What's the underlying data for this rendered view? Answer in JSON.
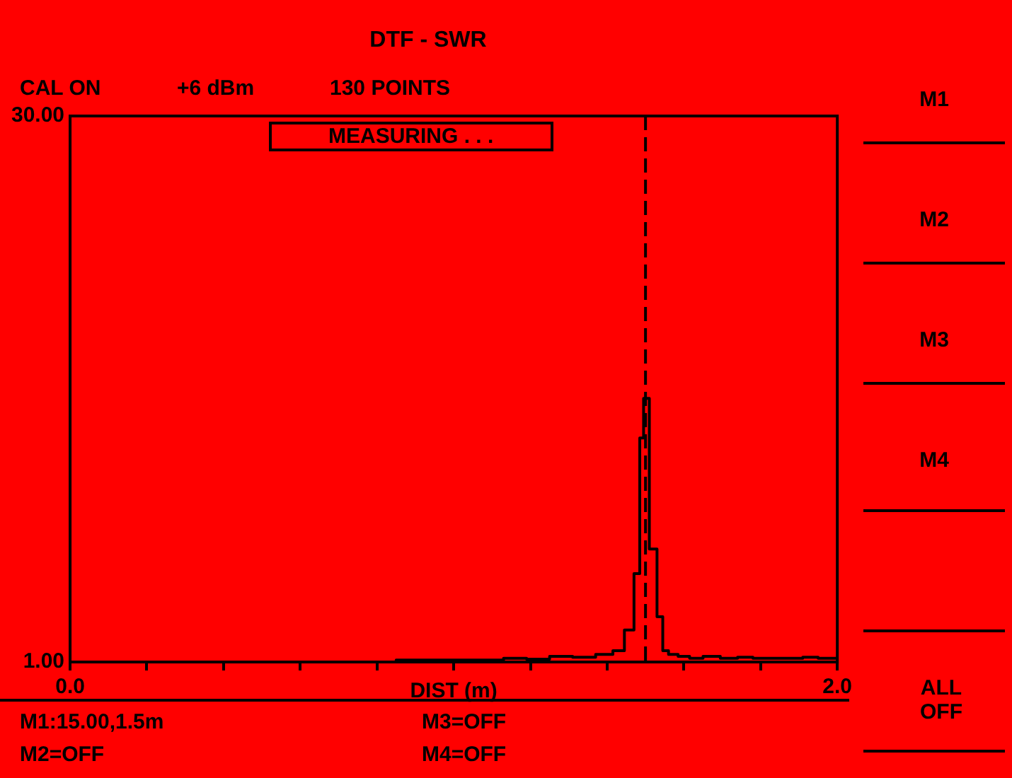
{
  "chart_data": {
    "type": "step",
    "title": "DTF - SWR",
    "xlabel": "DIST (m)",
    "annotations": [
      "CAL ON",
      "+6 dBm",
      "130 POINTS",
      "MEASURING . . .",
      "M1:15.00,1.5m",
      "M2=OFF",
      "M3=OFF",
      "M4=OFF",
      "M1",
      "M2",
      "M3",
      "M4",
      "ALL OFF"
    ],
    "x": [
      0,
      0.6,
      1.1,
      1.16,
      1.22,
      1.28,
      1.34,
      1.4,
      1.43,
      1.46,
      1.48,
      1.49,
      1.5,
      1.52,
      1.54,
      1.55,
      1.57,
      1.6,
      1.63,
      1.67,
      1.72,
      1.76,
      1.8,
      1.85,
      1.89,
      1.93,
      1.97,
      2.0
    ],
    "series": [
      {
        "color": "#000000",
        "values": [
          1.0,
          1.0,
          1.1,
          1.2,
          1.15,
          1.3,
          1.25,
          1.4,
          1.6,
          2.7,
          5.7,
          12.9,
          15.0,
          7.0,
          3.4,
          1.6,
          1.4,
          1.3,
          1.2,
          1.3,
          1.2,
          1.25,
          1.2,
          1.2,
          1.2,
          1.25,
          1.2,
          1.2
        ]
      }
    ],
    "xlim": [
      0,
      2
    ],
    "xticks": [
      {
        "value": 0,
        "label": "0.0"
      },
      {
        "value": 0.2,
        "label": null
      },
      {
        "value": 0.4,
        "label": null
      },
      {
        "value": 0.6,
        "label": null
      },
      {
        "value": 0.8,
        "label": null
      },
      {
        "value": 1.0,
        "label": null
      },
      {
        "value": 1.2,
        "label": null
      },
      {
        "value": 1.4,
        "label": null
      },
      {
        "value": 1.6,
        "label": null
      },
      {
        "value": 1.8,
        "label": null
      },
      {
        "value": 2,
        "label": "2.0"
      }
    ],
    "ylim": [
      1,
      30
    ],
    "yticks": [
      {
        "value": 1,
        "label": "1.00"
      },
      {
        "value": 30,
        "label": "30.00"
      }
    ],
    "ref_lines": [
      {
        "axis": "x",
        "value": 1.5,
        "color": "#000000",
        "line_style": "dashed"
      }
    ],
    "grid": false,
    "legend": false,
    "marker": "none"
  }
}
